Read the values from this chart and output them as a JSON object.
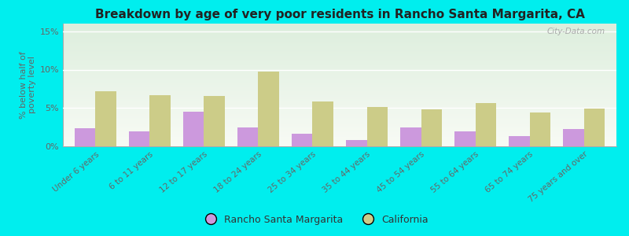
{
  "title": "Breakdown by age of very poor residents in Rancho Santa Margarita, CA",
  "ylabel": "% below half of\npoverty level",
  "categories": [
    "Under 6 years",
    "6 to 11 years",
    "12 to 17 years",
    "18 to 24 years",
    "25 to 34 years",
    "35 to 44 years",
    "45 to 54 years",
    "55 to 64 years",
    "65 to 74 years",
    "75 years and over"
  ],
  "rsm_values": [
    2.4,
    2.0,
    4.5,
    2.5,
    1.6,
    0.8,
    2.5,
    2.0,
    1.3,
    2.3
  ],
  "ca_values": [
    7.2,
    6.7,
    6.6,
    9.7,
    5.8,
    5.1,
    4.8,
    5.6,
    4.4,
    4.9
  ],
  "rsm_color": "#cc99dd",
  "ca_color": "#cccc88",
  "background_color": "#00eeee",
  "plot_bg_top": "#ddeedd",
  "plot_bg_bottom": "#f8fbf5",
  "ylim": [
    0,
    16
  ],
  "yticks": [
    0,
    5,
    10,
    15
  ],
  "ytick_labels": [
    "0%",
    "5%",
    "10%",
    "15%"
  ],
  "bar_width": 0.38,
  "watermark": "City-Data.com",
  "legend_rsm": "Rancho Santa Margarita",
  "legend_ca": "California"
}
